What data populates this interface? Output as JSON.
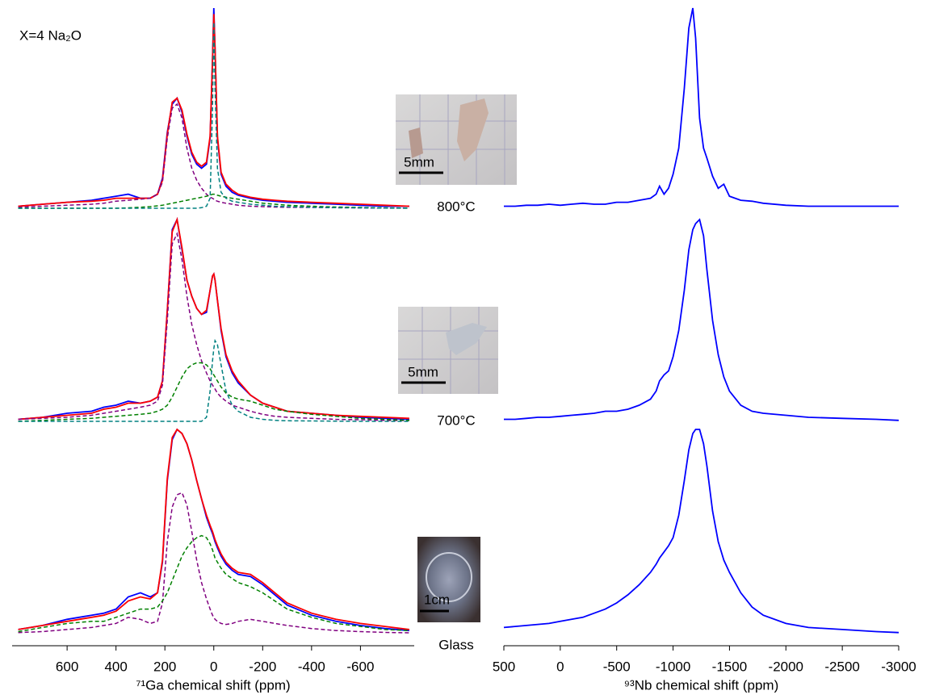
{
  "chart_data": [
    {
      "type": "line",
      "annotation": "X=4 Na₂O",
      "x": [
        800,
        700,
        600,
        500,
        450,
        400,
        350,
        300,
        260,
        230,
        210,
        190,
        170,
        150,
        130,
        110,
        90,
        70,
        50,
        30,
        15,
        5,
        0,
        -5,
        -15,
        -30,
        -50,
        -75,
        -100,
        -150,
        -200,
        -250,
        -300,
        -400,
        -500,
        -600,
        -700,
        -800
      ],
      "xlim": [
        825,
        -820
      ],
      "ylim": [
        0,
        1
      ],
      "series": [
        {
          "color": "#0000ff",
          "dashed": false,
          "values": [
            0.01,
            0.02,
            0.03,
            0.04,
            0.05,
            0.06,
            0.07,
            0.05,
            0.05,
            0.07,
            0.15,
            0.38,
            0.52,
            0.55,
            0.48,
            0.36,
            0.27,
            0.22,
            0.2,
            0.22,
            0.35,
            0.75,
            1.0,
            0.8,
            0.35,
            0.17,
            0.11,
            0.08,
            0.065,
            0.05,
            0.04,
            0.035,
            0.03,
            0.025,
            0.02,
            0.015,
            0.01,
            0.01
          ]
        },
        {
          "color": "#ff0000",
          "dashed": false,
          "values": [
            0.01,
            0.02,
            0.03,
            0.035,
            0.04,
            0.05,
            0.05,
            0.05,
            0.05,
            0.07,
            0.14,
            0.37,
            0.53,
            0.55,
            0.49,
            0.37,
            0.28,
            0.23,
            0.21,
            0.23,
            0.36,
            0.74,
            0.97,
            0.8,
            0.36,
            0.18,
            0.12,
            0.09,
            0.07,
            0.055,
            0.045,
            0.04,
            0.035,
            0.03,
            0.025,
            0.02,
            0.015,
            0.01
          ]
        },
        {
          "color": "#800080",
          "dashed": true,
          "values": [
            0.005,
            0.01,
            0.015,
            0.02,
            0.025,
            0.035,
            0.04,
            0.045,
            0.05,
            0.07,
            0.13,
            0.35,
            0.5,
            0.52,
            0.45,
            0.3,
            0.2,
            0.14,
            0.1,
            0.07,
            0.055,
            0.05,
            0.045,
            0.04,
            0.035,
            0.03,
            0.025,
            0.02,
            0.015,
            0.01,
            0.008,
            0.006,
            0.005,
            0.004,
            0.003,
            0.002,
            0.001,
            0.001
          ]
        },
        {
          "color": "#008000",
          "dashed": true,
          "values": [
            0,
            0,
            0,
            0,
            0,
            0,
            0.002,
            0.005,
            0.008,
            0.012,
            0.015,
            0.02,
            0.025,
            0.03,
            0.035,
            0.04,
            0.045,
            0.05,
            0.055,
            0.06,
            0.065,
            0.07,
            0.07,
            0.07,
            0.065,
            0.06,
            0.055,
            0.05,
            0.045,
            0.035,
            0.025,
            0.02,
            0.015,
            0.01,
            0.006,
            0.004,
            0.002,
            0.001
          ]
        },
        {
          "color": "#008080",
          "dashed": true,
          "values": [
            0,
            0,
            0,
            0,
            0,
            0,
            0,
            0,
            0,
            0,
            0,
            0,
            0,
            0,
            0,
            0,
            0,
            0,
            0.003,
            0.01,
            0.05,
            0.5,
            0.93,
            0.6,
            0.2,
            0.08,
            0.05,
            0.035,
            0.03,
            0.02,
            0.015,
            0.01,
            0.008,
            0.005,
            0.003,
            0.002,
            0.001,
            0
          ]
        }
      ]
    },
    {
      "type": "line",
      "x": [
        800,
        700,
        600,
        500,
        450,
        400,
        350,
        300,
        260,
        230,
        210,
        190,
        170,
        150,
        130,
        110,
        90,
        70,
        50,
        30,
        15,
        5,
        0,
        -5,
        -15,
        -30,
        -50,
        -75,
        -100,
        -150,
        -200,
        -250,
        -300,
        -400,
        -500,
        -600,
        -700,
        -800
      ],
      "xlim": [
        825,
        -820
      ],
      "ylim": [
        0,
        1
      ],
      "series": [
        {
          "color": "#0000ff",
          "dashed": false,
          "values": [
            0.01,
            0.02,
            0.04,
            0.05,
            0.07,
            0.08,
            0.1,
            0.09,
            0.1,
            0.12,
            0.2,
            0.55,
            0.95,
            1.0,
            0.85,
            0.7,
            0.62,
            0.56,
            0.53,
            0.54,
            0.65,
            0.72,
            0.73,
            0.7,
            0.6,
            0.45,
            0.32,
            0.24,
            0.19,
            0.13,
            0.09,
            0.07,
            0.05,
            0.04,
            0.03,
            0.02,
            0.015,
            0.01
          ]
        },
        {
          "color": "#ff0000",
          "dashed": false,
          "values": [
            0.01,
            0.02,
            0.03,
            0.04,
            0.06,
            0.07,
            0.09,
            0.09,
            0.1,
            0.12,
            0.2,
            0.55,
            0.94,
            1.0,
            0.86,
            0.7,
            0.62,
            0.56,
            0.53,
            0.55,
            0.65,
            0.72,
            0.73,
            0.7,
            0.6,
            0.46,
            0.33,
            0.25,
            0.2,
            0.13,
            0.09,
            0.07,
            0.05,
            0.04,
            0.03,
            0.025,
            0.02,
            0.015
          ]
        },
        {
          "color": "#800080",
          "dashed": true,
          "values": [
            0.01,
            0.015,
            0.02,
            0.03,
            0.04,
            0.05,
            0.06,
            0.07,
            0.08,
            0.1,
            0.18,
            0.5,
            0.88,
            0.93,
            0.8,
            0.62,
            0.48,
            0.38,
            0.3,
            0.24,
            0.2,
            0.18,
            0.17,
            0.16,
            0.14,
            0.12,
            0.1,
            0.08,
            0.07,
            0.05,
            0.035,
            0.025,
            0.02,
            0.015,
            0.01,
            0.008,
            0.005,
            0.004
          ]
        },
        {
          "color": "#008000",
          "dashed": true,
          "values": [
            0,
            0.005,
            0.01,
            0.015,
            0.02,
            0.025,
            0.03,
            0.035,
            0.04,
            0.05,
            0.06,
            0.08,
            0.12,
            0.17,
            0.22,
            0.26,
            0.28,
            0.29,
            0.29,
            0.28,
            0.26,
            0.24,
            0.23,
            0.22,
            0.2,
            0.17,
            0.14,
            0.12,
            0.11,
            0.1,
            0.08,
            0.06,
            0.05,
            0.035,
            0.025,
            0.015,
            0.01,
            0.005
          ]
        },
        {
          "color": "#008080",
          "dashed": true,
          "values": [
            0,
            0,
            0,
            0,
            0,
            0,
            0,
            0,
            0,
            0,
            0,
            0,
            0,
            0,
            0,
            0,
            0,
            0,
            0,
            0.02,
            0.15,
            0.3,
            0.36,
            0.4,
            0.38,
            0.28,
            0.15,
            0.08,
            0.05,
            0.02,
            0.01,
            0.005,
            0.003,
            0.002,
            0.001,
            0,
            0,
            0
          ]
        }
      ]
    },
    {
      "type": "line",
      "xlabel": "⁷¹Ga chemical shift (ppm)",
      "x": [
        800,
        700,
        600,
        500,
        450,
        400,
        350,
        300,
        260,
        230,
        210,
        190,
        170,
        150,
        130,
        110,
        90,
        70,
        50,
        30,
        15,
        5,
        0,
        -5,
        -15,
        -30,
        -50,
        -75,
        -100,
        -150,
        -200,
        -250,
        -300,
        -400,
        -500,
        -600,
        -700,
        -800
      ],
      "xlim": [
        825,
        -820
      ],
      "ylim": [
        0,
        1
      ],
      "xticks": [
        600,
        400,
        200,
        0,
        -200,
        -400,
        -600
      ],
      "series": [
        {
          "color": "#0000ff",
          "dashed": false,
          "values": [
            0.02,
            0.04,
            0.07,
            0.09,
            0.1,
            0.12,
            0.18,
            0.2,
            0.18,
            0.2,
            0.35,
            0.75,
            0.95,
            1.0,
            0.98,
            0.93,
            0.85,
            0.75,
            0.66,
            0.57,
            0.52,
            0.49,
            0.47,
            0.45,
            0.42,
            0.38,
            0.34,
            0.31,
            0.29,
            0.28,
            0.24,
            0.19,
            0.14,
            0.09,
            0.06,
            0.04,
            0.025,
            0.015
          ]
        },
        {
          "color": "#ff0000",
          "dashed": false,
          "values": [
            0.02,
            0.04,
            0.06,
            0.08,
            0.09,
            0.11,
            0.16,
            0.18,
            0.17,
            0.2,
            0.36,
            0.76,
            0.96,
            1.0,
            0.98,
            0.93,
            0.85,
            0.75,
            0.66,
            0.58,
            0.53,
            0.5,
            0.48,
            0.46,
            0.43,
            0.39,
            0.35,
            0.32,
            0.3,
            0.29,
            0.25,
            0.2,
            0.15,
            0.1,
            0.07,
            0.05,
            0.035,
            0.02
          ]
        },
        {
          "color": "#800080",
          "dashed": true,
          "values": [
            0.005,
            0.01,
            0.02,
            0.03,
            0.04,
            0.05,
            0.08,
            0.07,
            0.05,
            0.06,
            0.15,
            0.45,
            0.62,
            0.68,
            0.69,
            0.63,
            0.5,
            0.36,
            0.25,
            0.17,
            0.12,
            0.09,
            0.08,
            0.07,
            0.06,
            0.05,
            0.045,
            0.05,
            0.06,
            0.07,
            0.06,
            0.05,
            0.04,
            0.025,
            0.015,
            0.01,
            0.006,
            0.004
          ]
        },
        {
          "color": "#008000",
          "dashed": true,
          "values": [
            0.01,
            0.03,
            0.05,
            0.06,
            0.06,
            0.08,
            0.1,
            0.12,
            0.12,
            0.13,
            0.16,
            0.2,
            0.26,
            0.32,
            0.38,
            0.42,
            0.45,
            0.47,
            0.48,
            0.47,
            0.44,
            0.41,
            0.39,
            0.37,
            0.35,
            0.32,
            0.29,
            0.27,
            0.25,
            0.23,
            0.2,
            0.16,
            0.12,
            0.08,
            0.05,
            0.035,
            0.02,
            0.015
          ]
        }
      ]
    },
    {
      "type": "line",
      "x": [
        500,
        400,
        300,
        200,
        100,
        0,
        -100,
        -200,
        -300,
        -400,
        -500,
        -600,
        -700,
        -800,
        -850,
        -880,
        -920,
        -960,
        -1000,
        -1050,
        -1100,
        -1140,
        -1175,
        -1200,
        -1235,
        -1270,
        -1300,
        -1350,
        -1400,
        -1450,
        -1500,
        -1600,
        -1700,
        -1800,
        -2000,
        -2200,
        -2500,
        -2800,
        -3000
      ],
      "xlim": [
        500,
        -3000
      ],
      "ylim": [
        0,
        1
      ],
      "series": [
        {
          "color": "#0000ff",
          "dashed": false,
          "values": [
            0.01,
            0.01,
            0.015,
            0.015,
            0.02,
            0.015,
            0.02,
            0.025,
            0.02,
            0.02,
            0.03,
            0.03,
            0.04,
            0.05,
            0.07,
            0.11,
            0.07,
            0.1,
            0.17,
            0.3,
            0.6,
            0.9,
            1.0,
            0.85,
            0.45,
            0.3,
            0.25,
            0.16,
            0.1,
            0.12,
            0.06,
            0.04,
            0.035,
            0.025,
            0.015,
            0.01,
            0.01,
            0.01,
            0.01
          ]
        }
      ]
    },
    {
      "type": "line",
      "x": [
        500,
        400,
        300,
        200,
        100,
        0,
        -100,
        -200,
        -300,
        -400,
        -500,
        -600,
        -700,
        -800,
        -850,
        -880,
        -920,
        -960,
        -1000,
        -1050,
        -1100,
        -1140,
        -1175,
        -1200,
        -1235,
        -1270,
        -1300,
        -1350,
        -1400,
        -1450,
        -1500,
        -1600,
        -1700,
        -1800,
        -2000,
        -2200,
        -2500,
        -2800,
        -3000
      ],
      "xlim": [
        500,
        -3000
      ],
      "ylim": [
        0,
        1
      ],
      "series": [
        {
          "color": "#0000ff",
          "dashed": false,
          "values": [
            0.01,
            0.01,
            0.015,
            0.02,
            0.02,
            0.025,
            0.03,
            0.035,
            0.04,
            0.05,
            0.05,
            0.06,
            0.08,
            0.11,
            0.15,
            0.2,
            0.23,
            0.25,
            0.32,
            0.45,
            0.65,
            0.85,
            0.95,
            0.98,
            1.0,
            0.92,
            0.75,
            0.5,
            0.33,
            0.22,
            0.15,
            0.08,
            0.05,
            0.04,
            0.03,
            0.02,
            0.015,
            0.01,
            0.005
          ]
        }
      ]
    },
    {
      "type": "line",
      "xlabel": "⁹³Nb chemical shift (ppm)",
      "x": [
        500,
        400,
        300,
        200,
        100,
        0,
        -100,
        -200,
        -300,
        -400,
        -500,
        -600,
        -700,
        -800,
        -850,
        -880,
        -920,
        -960,
        -1000,
        -1050,
        -1100,
        -1140,
        -1175,
        -1200,
        -1235,
        -1270,
        -1300,
        -1350,
        -1400,
        -1450,
        -1500,
        -1600,
        -1700,
        -1800,
        -2000,
        -2200,
        -2500,
        -2800,
        -3000
      ],
      "xlim": [
        500,
        -3000
      ],
      "ylim": [
        0,
        1
      ],
      "xticks": [
        500,
        0,
        -500,
        -1000,
        -1500,
        -2000,
        -2500,
        -3000
      ],
      "series": [
        {
          "color": "#0000ff",
          "dashed": false,
          "values": [
            0.03,
            0.035,
            0.04,
            0.045,
            0.05,
            0.06,
            0.07,
            0.08,
            0.1,
            0.12,
            0.15,
            0.19,
            0.24,
            0.3,
            0.34,
            0.37,
            0.4,
            0.43,
            0.47,
            0.58,
            0.75,
            0.9,
            0.98,
            1.0,
            1.0,
            0.93,
            0.82,
            0.6,
            0.45,
            0.36,
            0.3,
            0.2,
            0.13,
            0.09,
            0.05,
            0.03,
            0.02,
            0.01,
            0.005
          ]
        }
      ]
    }
  ],
  "samples": [
    {
      "label": "800°C",
      "scale": "5mm"
    },
    {
      "label": "700°C",
      "scale": "5mm"
    },
    {
      "label": "Glass",
      "scale": "1cm"
    }
  ]
}
